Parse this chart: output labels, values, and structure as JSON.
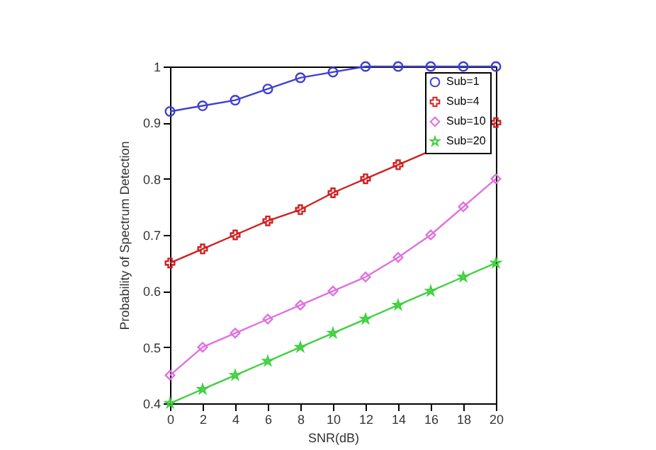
{
  "chart_data": {
    "type": "line",
    "xlabel": "SNR(dB)",
    "ylabel": "Probability of Spectrum Detection",
    "x": [
      0,
      2,
      4,
      6,
      8,
      10,
      12,
      14,
      16,
      18,
      20
    ],
    "xlim": [
      0,
      20
    ],
    "xticks": [
      0,
      2,
      4,
      6,
      8,
      10,
      12,
      14,
      16,
      18,
      20
    ],
    "ylim": [
      0.4,
      1
    ],
    "yticks": [
      0.4,
      0.5,
      0.6,
      0.7,
      0.8,
      0.9,
      {
        "value": 1,
        "label": "1"
      }
    ],
    "grid": false,
    "legend": "top right",
    "line_style": "solid",
    "series": [
      {
        "name": "Sub=1",
        "color": "#4040d0",
        "marker": "circle",
        "values": [
          0.92,
          0.93,
          0.94,
          0.96,
          0.98,
          0.99,
          1,
          1,
          1,
          1,
          1
        ]
      },
      {
        "name": "Sub=4",
        "color": "#d02020",
        "marker": "cross",
        "values": [
          0.65,
          0.675,
          0.7,
          0.725,
          0.745,
          0.775,
          0.8,
          0.825,
          null,
          null,
          0.9
        ]
      },
      {
        "name": "Sub=10",
        "color": "#e070e0",
        "marker": "diamond",
        "values": [
          0.45,
          0.5,
          0.525,
          0.55,
          0.575,
          0.6,
          0.625,
          0.66,
          0.7,
          0.75,
          0.8
        ]
      },
      {
        "name": "Sub=20",
        "color": "#40d040",
        "marker": "star",
        "values": [
          0.4,
          0.425,
          0.45,
          0.475,
          0.5,
          0.525,
          0.55,
          0.575,
          0.6,
          0.625,
          0.65
        ]
      }
    ]
  }
}
